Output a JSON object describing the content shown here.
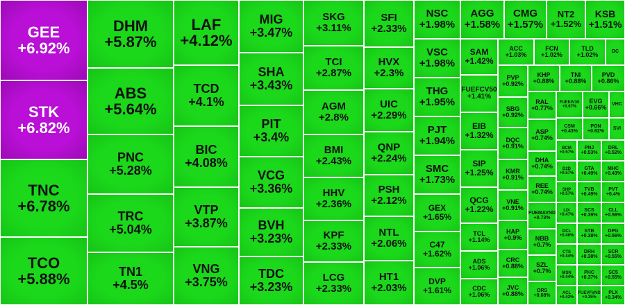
{
  "colors": {
    "ceiling": "#b90fd6",
    "up": "#1bd81b",
    "border": "#ffffff",
    "text_dark": "#111111",
    "text_light": "#ffffff"
  },
  "chart_data": {
    "type": "treemap",
    "columns": [
      [
        {
          "ticker": "GEE",
          "change": "+6.92%",
          "status": "ceiling"
        },
        {
          "ticker": "STK",
          "change": "+6.82%",
          "status": "ceiling"
        },
        {
          "ticker": "TNC",
          "change": "+6.78%",
          "status": "up"
        },
        {
          "ticker": "TCO",
          "change": "+5.88%",
          "status": "up"
        }
      ],
      [
        {
          "ticker": "DHM",
          "change": "+5.87%",
          "status": "up"
        },
        {
          "ticker": "ABS",
          "change": "+5.64%",
          "status": "up"
        },
        {
          "ticker": "PNC",
          "change": "+5.28%",
          "status": "up"
        },
        {
          "ticker": "TRC",
          "change": "+5.04%",
          "status": "up"
        },
        {
          "ticker": "TN1",
          "change": "+4.5%",
          "status": "up"
        }
      ],
      [
        {
          "ticker": "LAF",
          "change": "+4.12%",
          "status": "up"
        },
        {
          "ticker": "TCD",
          "change": "+4.1%",
          "status": "up"
        },
        {
          "ticker": "BIC",
          "change": "+4.08%",
          "status": "up"
        },
        {
          "ticker": "VTP",
          "change": "+3.87%",
          "status": "up"
        },
        {
          "ticker": "VNG",
          "change": "+3.75%",
          "status": "up"
        }
      ],
      [
        {
          "ticker": "MIG",
          "change": "+3.47%",
          "status": "up"
        },
        {
          "ticker": "SHA",
          "change": "+3.43%",
          "status": "up"
        },
        {
          "ticker": "PIT",
          "change": "+3.4%",
          "status": "up"
        },
        {
          "ticker": "VCG",
          "change": "+3.36%",
          "status": "up"
        },
        {
          "ticker": "BVH",
          "change": "+3.23%",
          "status": "up"
        },
        {
          "ticker": "TDC",
          "change": "+3.23%",
          "status": "up"
        }
      ],
      [
        {
          "ticker": "SKG",
          "change": "+3.11%",
          "status": "up"
        },
        {
          "ticker": "TCI",
          "change": "+2.87%",
          "status": "up"
        },
        {
          "ticker": "AGM",
          "change": "+2.8%",
          "status": "up"
        },
        {
          "ticker": "BMI",
          "change": "+2.43%",
          "status": "up"
        },
        {
          "ticker": "HHV",
          "change": "+2.36%",
          "status": "up"
        },
        {
          "ticker": "KPF",
          "change": "+2.33%",
          "status": "up"
        },
        {
          "ticker": "LCG",
          "change": "+2.33%",
          "status": "up"
        }
      ],
      [
        {
          "ticker": "SFI",
          "change": "+2.33%",
          "status": "up"
        },
        {
          "ticker": "HVX",
          "change": "+2.3%",
          "status": "up"
        },
        {
          "ticker": "UIC",
          "change": "+2.29%",
          "status": "up"
        },
        {
          "ticker": "QNP",
          "change": "+2.24%",
          "status": "up"
        },
        {
          "ticker": "PSH",
          "change": "+2.12%",
          "status": "up"
        },
        {
          "ticker": "NTL",
          "change": "+2.06%",
          "status": "up"
        },
        {
          "ticker": "HT1",
          "change": "+2.03%",
          "status": "up"
        }
      ],
      [
        {
          "ticker": "NSC",
          "change": "+1.98%",
          "status": "up"
        },
        {
          "ticker": "VSC",
          "change": "+1.98%",
          "status": "up"
        },
        {
          "ticker": "THG",
          "change": "+1.95%",
          "status": "up"
        },
        {
          "ticker": "PJT",
          "change": "+1.94%",
          "status": "up"
        },
        {
          "ticker": "SMC",
          "change": "+1.73%",
          "status": "up"
        },
        {
          "ticker": "GEX",
          "change": "+1.65%",
          "status": "up"
        },
        {
          "ticker": "C47",
          "change": "+1.62%",
          "status": "up"
        },
        {
          "ticker": "DVP",
          "change": "+1.61%",
          "status": "up"
        }
      ],
      [
        {
          "ticker": "AGG",
          "change": "+1.58%",
          "status": "up"
        },
        {
          "ticker": "CMG",
          "change": "+1.57%",
          "status": "up"
        },
        {
          "ticker": "NT2",
          "change": "+1.52%",
          "status": "up"
        },
        {
          "ticker": "KSB",
          "change": "+1.51%",
          "status": "up"
        },
        {
          "ticker": "SAM",
          "change": "+1.42%",
          "status": "up"
        },
        {
          "ticker": "FUEFCV50",
          "change": "+1.41%",
          "status": "up"
        },
        {
          "ticker": "EIB",
          "change": "+1.32%",
          "status": "up"
        },
        {
          "ticker": "SIP",
          "change": "+1.25%",
          "status": "up"
        },
        {
          "ticker": "QCG",
          "change": "+1.22%",
          "status": "up"
        },
        {
          "ticker": "TCL",
          "change": "+1.14%",
          "status": "up"
        },
        {
          "ticker": "ADS",
          "change": "+1.06%",
          "status": "up"
        },
        {
          "ticker": "CDC",
          "change": "+1.06%",
          "status": "up"
        }
      ],
      [
        {
          "ticker": "ACC",
          "change": "+1.03%",
          "status": "up"
        },
        {
          "ticker": "FCN",
          "change": "+1.02%",
          "status": "up"
        },
        {
          "ticker": "TLD",
          "change": "+1.02%",
          "status": "up"
        },
        {
          "ticker": "DC",
          "change": "",
          "status": "up"
        },
        {
          "ticker": "PVP",
          "change": "+0.92%",
          "status": "up"
        },
        {
          "ticker": "SBG",
          "change": "+0.92%",
          "status": "up"
        },
        {
          "ticker": "DQC",
          "change": "+0.91%",
          "status": "up"
        },
        {
          "ticker": "KMR",
          "change": "+0.91%",
          "status": "up"
        },
        {
          "ticker": "VNE",
          "change": "+0.91%",
          "status": "up"
        },
        {
          "ticker": "HAP",
          "change": "+0.9%",
          "status": "up"
        },
        {
          "ticker": "CRC",
          "change": "+0.88%",
          "status": "up"
        },
        {
          "ticker": "JVC",
          "change": "+0.88%",
          "status": "up"
        }
      ],
      [
        {
          "ticker": "KHP",
          "change": "+0.88%",
          "status": "up"
        },
        {
          "ticker": "TNI",
          "change": "+0.88%",
          "status": "up"
        },
        {
          "ticker": "PVD",
          "change": "+0.86%",
          "status": "up"
        },
        {
          "ticker": "RAL",
          "change": "+0.77%",
          "status": "up"
        },
        {
          "ticker": "FUEKIV30",
          "change": "+0.67%",
          "status": "up"
        },
        {
          "ticker": "EVG",
          "change": "+0.66%",
          "status": "up"
        },
        {
          "ticker": "VHC",
          "change": "",
          "status": "up"
        },
        {
          "ticker": "ASP",
          "change": "+0.74%",
          "status": "up"
        },
        {
          "ticker": "DHA",
          "change": "+0.74%",
          "status": "up"
        },
        {
          "ticker": "REE",
          "change": "+0.74%",
          "status": "up"
        },
        {
          "ticker": "FUEMAVND",
          "change": "+0.73%",
          "status": "up"
        },
        {
          "ticker": "NBB",
          "change": "+0.7%",
          "status": "up"
        },
        {
          "ticker": "SZL",
          "change": "+0.7%",
          "status": "up"
        },
        {
          "ticker": "ORS",
          "change": "+0.68%",
          "status": "up"
        }
      ],
      [
        {
          "ticker": "CSM",
          "change": "+0.43%",
          "status": "up"
        },
        {
          "ticker": "PON",
          "change": "+0.62%",
          "status": "up"
        },
        {
          "ticker": "SVI",
          "change": "",
          "status": "up"
        },
        {
          "ticker": "BCM",
          "change": "+0.57%",
          "status": "up"
        },
        {
          "ticker": "PNJ",
          "change": "+0.53%",
          "status": "up"
        },
        {
          "ticker": "DRL",
          "change": "+0.52%",
          "status": "up"
        },
        {
          "ticker": "D2D",
          "change": "+0.57%",
          "status": "up"
        },
        {
          "ticker": "GTA",
          "change": "+0.49%",
          "status": "up"
        },
        {
          "ticker": "MHC",
          "change": "+0.43%",
          "status": "up"
        },
        {
          "ticker": "SHP",
          "change": "+0.57%",
          "status": "up"
        },
        {
          "ticker": "TVB",
          "change": "+0.49%",
          "status": "up"
        },
        {
          "ticker": "PVT",
          "change": "+0.4%",
          "status": "up"
        },
        {
          "ticker": "LIX",
          "change": "+0.47%",
          "status": "up"
        },
        {
          "ticker": "SCS",
          "change": "+0.39%",
          "status": "up"
        },
        {
          "ticker": "CLL",
          "change": "+0.56%",
          "status": "up"
        },
        {
          "ticker": "DCL",
          "change": "+0.46%",
          "status": "up"
        },
        {
          "ticker": "STB",
          "change": "+0.38%",
          "status": "up"
        },
        {
          "ticker": "DPG",
          "change": "+0.56%",
          "status": "up"
        },
        {
          "ticker": "CTS",
          "change": "+0.44%",
          "status": "up"
        },
        {
          "ticker": "DRH",
          "change": "+0.38%",
          "status": "up"
        },
        {
          "ticker": "SCR",
          "change": "+0.55%",
          "status": "up"
        },
        {
          "ticker": "MSN",
          "change": "+0.44%",
          "status": "up"
        },
        {
          "ticker": "PHC",
          "change": "+0.37%",
          "status": "up"
        },
        {
          "ticker": "SC5",
          "change": "+0.55%",
          "status": "up"
        },
        {
          "ticker": "ACL",
          "change": "+0.42%",
          "status": "up"
        },
        {
          "ticker": "FUEVFVND",
          "change": "+0.35%",
          "status": "up"
        },
        {
          "ticker": "PLX",
          "change": "+0.34%",
          "status": "up"
        }
      ]
    ]
  }
}
